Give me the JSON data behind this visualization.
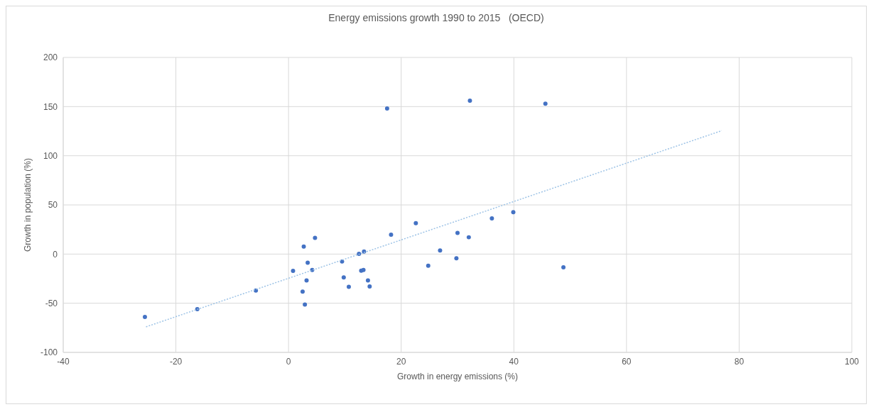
{
  "chart_data": {
    "type": "scatter",
    "title": "Energy emissions growth 1990 to 2015   (OECD)",
    "xlabel": "Growth in energy emissions (%)",
    "ylabel": "Growth in population (%)",
    "xlim": [
      -40,
      100
    ],
    "xticks": [
      -40,
      -20,
      0,
      20,
      40,
      60,
      80,
      100
    ],
    "ylim": [
      -100,
      200
    ],
    "yticks": [
      -100,
      -50,
      0,
      50,
      100,
      150,
      200
    ],
    "grid": true,
    "marker": "circle",
    "series": [
      {
        "color": "#4472c4",
        "x": [
          -25.5,
          -16.2,
          -5.8,
          2.7,
          4.7,
          3.4,
          0.8,
          4.2,
          3.2,
          2.5,
          2.9,
          9.5,
          9.8,
          10.7,
          12.5,
          13.4,
          12.9,
          13.3,
          14.1,
          14.4,
          18.2,
          22.6,
          24.8,
          26.9,
          17.5,
          32.2,
          45.6,
          36.1,
          39.9,
          30.0,
          32.0,
          29.8,
          48.8
        ],
        "values": [
          -64,
          -56,
          -37,
          7.6,
          16.4,
          -8.8,
          -17.1,
          -16.2,
          -26.8,
          -38.2,
          -51.4,
          -7.6,
          -23.8,
          -33.3,
          0.2,
          2.6,
          -16.9,
          -16.2,
          -26.8,
          -32.9,
          19.7,
          31.5,
          -11.8,
          3.7,
          148,
          156,
          153,
          36.3,
          42.6,
          21.5,
          17.1,
          -4.2,
          -13.4
        ]
      },
      {
        "type": "line",
        "color": "#9dc3e6",
        "line_style": "dotted",
        "marker": "none",
        "x": [
          -25.3,
          76.9
        ],
        "values": [
          -74,
          125.5
        ]
      }
    ]
  }
}
